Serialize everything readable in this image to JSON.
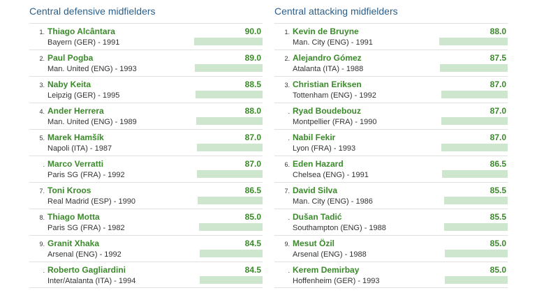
{
  "colors": {
    "title": "#2c5f8a",
    "name": "#3a8a2a",
    "bar": "#cde6cd"
  },
  "chart_data": [
    {
      "type": "bar",
      "title": "Central defensive midfielders",
      "xlim": [
        0,
        90.0
      ],
      "rows": [
        {
          "rank": "1.",
          "name": "Thiago Alcântara",
          "club": "Bayern (GER) - 1991",
          "value": 90.0,
          "label": "90.0"
        },
        {
          "rank": "2.",
          "name": "Paul Pogba",
          "club": "Man. United (ENG) - 1993",
          "value": 89.0,
          "label": "89.0"
        },
        {
          "rank": "3.",
          "name": "Naby Keita",
          "club": "Leipzig (GER) - 1995",
          "value": 88.5,
          "label": "88.5"
        },
        {
          "rank": "4.",
          "name": "Ander Herrera",
          "club": "Man. United (ENG) - 1989",
          "value": 88.0,
          "label": "88.0"
        },
        {
          "rank": "5.",
          "name": "Marek Hamšík",
          "club": "Napoli (ITA) - 1987",
          "value": 87.0,
          "label": "87.0"
        },
        {
          "rank": ".",
          "name": "Marco Verratti",
          "club": "Paris SG (FRA) - 1992",
          "value": 87.0,
          "label": "87.0"
        },
        {
          "rank": "7.",
          "name": "Toni Kroos",
          "club": "Real Madrid (ESP) - 1990",
          "value": 86.5,
          "label": "86.5"
        },
        {
          "rank": "8.",
          "name": "Thiago Motta",
          "club": "Paris SG (FRA) - 1982",
          "value": 85.0,
          "label": "85.0"
        },
        {
          "rank": "9.",
          "name": "Granit Xhaka",
          "club": "Arsenal (ENG) - 1992",
          "value": 84.5,
          "label": "84.5"
        },
        {
          "rank": ".",
          "name": "Roberto Gagliardini",
          "club": "Inter/Atalanta (ITA) - 1994",
          "value": 84.5,
          "label": "84.5"
        }
      ]
    },
    {
      "type": "bar",
      "title": "Central attacking midfielders",
      "xlim": [
        0,
        88.0
      ],
      "rows": [
        {
          "rank": "1.",
          "name": "Kevin de Bruyne",
          "club": "Man. City (ENG) - 1991",
          "value": 88.0,
          "label": "88.0"
        },
        {
          "rank": "2.",
          "name": "Alejandro Gómez",
          "club": "Atalanta (ITA) - 1988",
          "value": 87.5,
          "label": "87.5"
        },
        {
          "rank": "3.",
          "name": "Christian Eriksen",
          "club": "Tottenham (ENG) - 1992",
          "value": 87.0,
          "label": "87.0"
        },
        {
          "rank": ".",
          "name": "Ryad Boudebouz",
          "club": "Montpellier (FRA) - 1990",
          "value": 87.0,
          "label": "87.0"
        },
        {
          "rank": ".",
          "name": "Nabil Fekir",
          "club": "Lyon (FRA) - 1993",
          "value": 87.0,
          "label": "87.0"
        },
        {
          "rank": "6.",
          "name": "Eden Hazard",
          "club": "Chelsea (ENG) - 1991",
          "value": 86.5,
          "label": "86.5"
        },
        {
          "rank": "7.",
          "name": "David Silva",
          "club": "Man. City (ENG) - 1986",
          "value": 85.5,
          "label": "85.5"
        },
        {
          "rank": ".",
          "name": "Dušan Tadić",
          "club": "Southampton (ENG) - 1988",
          "value": 85.5,
          "label": "85.5"
        },
        {
          "rank": "9.",
          "name": "Mesut Özil",
          "club": "Arsenal (ENG) - 1988",
          "value": 85.0,
          "label": "85.0"
        },
        {
          "rank": ".",
          "name": "Kerem Demirbay",
          "club": "Hoffenheim (GER) - 1993",
          "value": 85.0,
          "label": "85.0"
        }
      ]
    }
  ]
}
